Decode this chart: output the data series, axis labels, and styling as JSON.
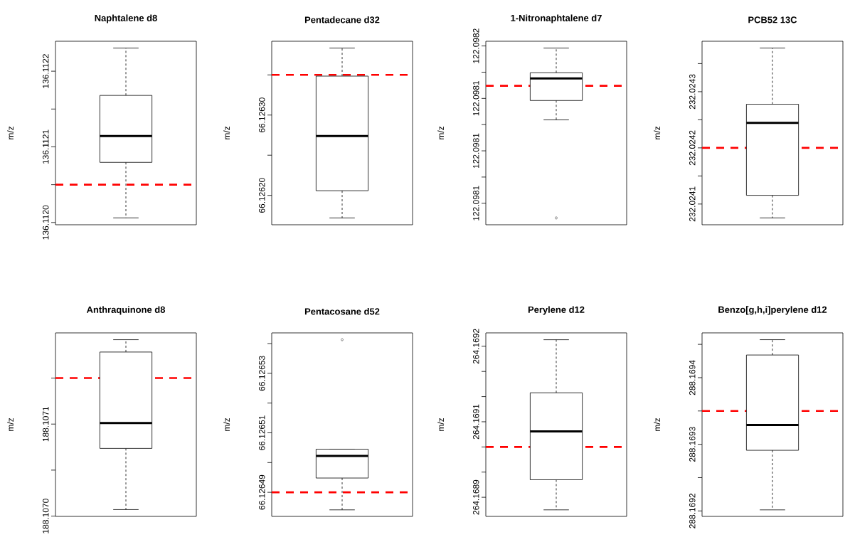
{
  "chart_data": [
    {
      "type": "box",
      "title": "Naphtalene d8",
      "ylabel": "m/z",
      "categories": [
        null
      ],
      "tick_labels": "y",
      "ylim": [
        136.111997,
        136.1122396
      ],
      "yticks": [
        {
          "value": 136.112,
          "label": "136.1120"
        },
        {
          "value": 136.11205,
          "label": null
        },
        {
          "value": 136.1121,
          "label": "136.1121"
        },
        {
          "value": 136.11215,
          "label": null
        },
        {
          "value": 136.1122,
          "label": "136.1122"
        }
      ],
      "boxes": [
        {
          "low": 136.1120061,
          "q1": 136.1120795,
          "median": 136.1121144,
          "q3": 136.112168,
          "high": 136.1122306
        }
      ],
      "ref_lines": [
        {
          "axis": "y",
          "value": 136.11205,
          "color": "#ff0000",
          "line_style": "dashed"
        }
      ]
    },
    {
      "type": "box",
      "title": "Pentadecane d32",
      "ylabel": "m/z",
      "categories": [
        null
      ],
      "tick_labels": "y",
      "ylim": [
        66.1261634,
        66.1263919
      ],
      "yticks": [
        {
          "value": 66.1262,
          "label": "66.12620"
        },
        {
          "value": 66.12625,
          "label": null
        },
        {
          "value": 66.1263,
          "label": "66.12630"
        },
        {
          "value": 66.12635,
          "label": null
        }
      ],
      "boxes": [
        {
          "low": 66.1261719,
          "q1": 66.1262058,
          "median": 66.1262739,
          "q3": 66.1263485,
          "high": 66.1263834
        }
      ],
      "ref_lines": [
        {
          "axis": "y",
          "value": 66.12635,
          "color": "#ff0000",
          "line_style": "dashed"
        }
      ]
    },
    {
      "type": "box",
      "title": "1-Nitronaphtalene d7",
      "ylabel": "m/z",
      "categories": [
        null
      ],
      "tick_labels": "y",
      "ylim": [
        122.0981159,
        122.0981509
      ],
      "yticks": [
        {
          "value": 122.09812,
          "label": "122.0981"
        },
        {
          "value": 122.098125,
          "label": null
        },
        {
          "value": 122.09813,
          "label": "122.0981"
        },
        {
          "value": 122.098135,
          "label": null
        },
        {
          "value": 122.09814,
          "label": "122.0981"
        },
        {
          "value": 122.098145,
          "label": null
        },
        {
          "value": 122.09815,
          "label": "122.0982"
        }
      ],
      "boxes": [
        {
          "low": 122.0981359,
          "q1": 122.0981396,
          "median": 122.0981438,
          "q3": 122.0981449,
          "high": 122.0981496,
          "outliers": [
            122.0981172
          ]
        }
      ],
      "ref_lines": [
        {
          "axis": "y",
          "value": 122.0981424,
          "color": "#ff0000",
          "line_style": "dashed"
        }
      ]
    },
    {
      "type": "box",
      "title": "PCB52 13C",
      "ylabel": "m/z",
      "categories": [
        null
      ],
      "tick_labels": "y",
      "ylim": [
        232.0240631,
        232.0243898
      ],
      "yticks": [
        {
          "value": 232.0241,
          "label": "232.0241"
        },
        {
          "value": 232.02415,
          "label": null
        },
        {
          "value": 232.0242,
          "label": "232.0242"
        },
        {
          "value": 232.02425,
          "label": null
        },
        {
          "value": 232.0243,
          "label": "232.0243"
        },
        {
          "value": 232.02435,
          "label": null
        }
      ],
      "boxes": [
        {
          "low": 232.0240753,
          "q1": 232.0241155,
          "median": 232.0242446,
          "q3": 232.0242777,
          "high": 232.0243777
        }
      ],
      "ref_lines": [
        {
          "axis": "y",
          "value": 232.0242,
          "color": "#ff0000",
          "line_style": "dashed"
        }
      ]
    },
    {
      "type": "box",
      "title": "Anthraquinone d8",
      "ylabel": "m/z",
      "categories": [
        null
      ],
      "tick_labels": "y",
      "ylim": [
        188.1069997,
        188.1071991
      ],
      "yticks": [
        {
          "value": 188.107,
          "label": "188.1070"
        },
        {
          "value": 188.10705,
          "label": null
        },
        {
          "value": 188.1071,
          "label": "188.1071"
        },
        {
          "value": 188.10715,
          "label": null
        }
      ],
      "boxes": [
        {
          "low": 188.1070071,
          "q1": 188.1070736,
          "median": 188.1071012,
          "q3": 188.1071783,
          "high": 188.1071917
        }
      ],
      "ref_lines": [
        {
          "axis": "y",
          "value": 188.10715,
          "color": "#ff0000",
          "line_style": "dashed"
        }
      ]
    },
    {
      "type": "box",
      "title": "Pentacosane d52",
      "ylabel": "m/z",
      "categories": [
        null
      ],
      "tick_labels": "y",
      "ylim": [
        66.1264819,
        66.1265436
      ],
      "yticks": [
        {
          "value": 66.12649,
          "label": "66.12649"
        },
        {
          "value": 66.1265,
          "label": null
        },
        {
          "value": 66.12651,
          "label": "66.12651"
        },
        {
          "value": 66.12652,
          "label": null
        },
        {
          "value": 66.12653,
          "label": "66.12653"
        },
        {
          "value": 66.12654,
          "label": null
        }
      ],
      "boxes": [
        {
          "low": 66.1264841,
          "q1": 66.1264948,
          "median": 66.1265022,
          "q3": 66.1265045,
          "high": 66.1265045,
          "outliers": [
            66.1265413
          ]
        }
      ],
      "ref_lines": [
        {
          "axis": "y",
          "value": 66.12649,
          "color": "#ff0000",
          "line_style": "dashed"
        }
      ]
    },
    {
      "type": "box",
      "title": "Perylene d12",
      "ylabel": "m/z",
      "categories": [
        null
      ],
      "tick_labels": "y",
      "ylim": [
        264.168862,
        264.1692266
      ],
      "yticks": [
        {
          "value": 264.1689,
          "label": "264.1689"
        },
        {
          "value": 264.16895,
          "label": null
        },
        {
          "value": 264.169,
          "label": null
        },
        {
          "value": 264.16905,
          "label": "264.1691"
        },
        {
          "value": 264.1691,
          "label": null
        },
        {
          "value": 264.16915,
          "label": null
        },
        {
          "value": 264.1692,
          "label": "264.1692"
        }
      ],
      "boxes": [
        {
          "low": 264.168875,
          "q1": 264.1689348,
          "median": 264.169031,
          "q3": 264.1691076,
          "high": 264.169213
        }
      ],
      "ref_lines": [
        {
          "axis": "y",
          "value": 264.169,
          "color": "#ff0000",
          "line_style": "dashed"
        }
      ]
    },
    {
      "type": "box",
      "title": "Benzo[g,h,i]perylene d12",
      "ylabel": "m/z",
      "categories": [
        null
      ],
      "tick_labels": "y",
      "ylim": [
        288.1691918,
        288.1694672
      ],
      "yticks": [
        {
          "value": 288.1692,
          "label": "288.1692"
        },
        {
          "value": 288.16925,
          "label": null
        },
        {
          "value": 288.1693,
          "label": "288.1693"
        },
        {
          "value": 288.16935,
          "label": null
        },
        {
          "value": 288.1694,
          "label": "288.1694"
        },
        {
          "value": 288.16945,
          "label": null
        }
      ],
      "boxes": [
        {
          "low": 288.1692016,
          "q1": 288.169291,
          "median": 288.169329,
          "q3": 288.169434,
          "high": 288.169457
        }
      ],
      "ref_lines": [
        {
          "axis": "y",
          "value": 288.16935,
          "color": "#ff0000",
          "line_style": "dashed"
        }
      ]
    }
  ]
}
